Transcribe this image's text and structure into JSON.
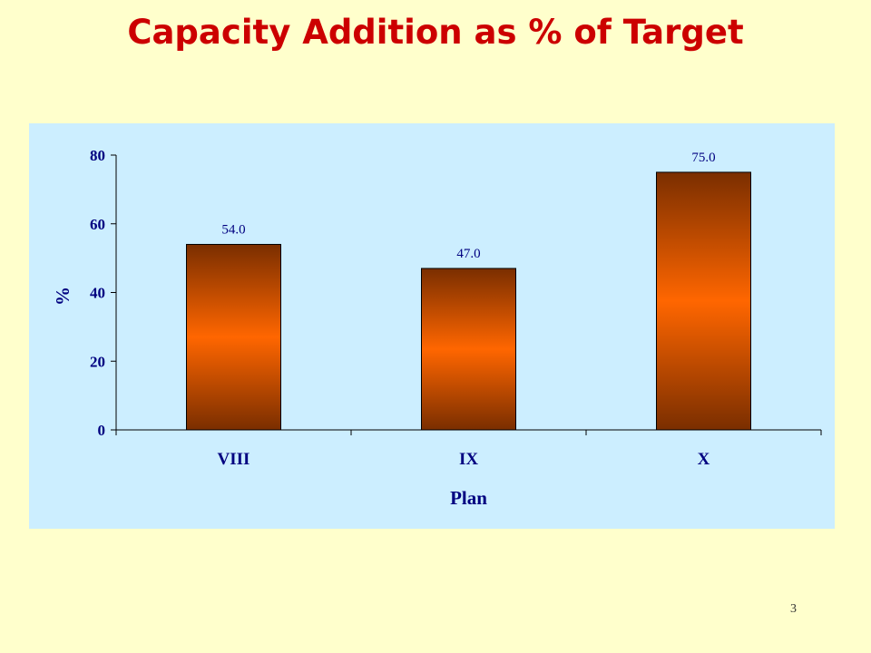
{
  "slide": {
    "title": "Capacity Addition as % of Target",
    "page_number": "3"
  },
  "colors": {
    "title": "#cc0000",
    "plot_background": "#cceeff",
    "page_background": "#ffffcc",
    "axis_text": "#000080",
    "bar_center": "#ff6600",
    "bar_edge": "#7a2e00"
  },
  "chart_data": {
    "type": "bar",
    "categories": [
      "VIII",
      "IX",
      "X"
    ],
    "values": [
      54.0,
      47.0,
      75.0
    ],
    "data_labels": [
      "54.0",
      "47.0",
      "75.0"
    ],
    "xlabel": "Plan",
    "ylabel": "%",
    "ylim": [
      0,
      80
    ],
    "yticks": [
      0,
      20,
      40,
      60,
      80
    ],
    "grid": false,
    "legend": "none"
  }
}
